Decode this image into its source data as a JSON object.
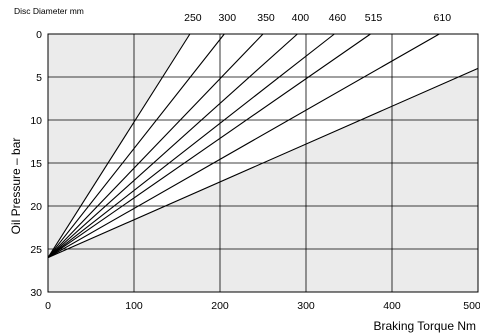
{
  "chart_data": {
    "type": "line",
    "title": "",
    "xlabel": "Braking Torque Nm",
    "ylabel": "Oil Pressure – bar",
    "xlim": [
      0,
      500
    ],
    "ylim": [
      30,
      0
    ],
    "x_ticks": [
      0,
      100,
      200,
      300,
      400,
      500
    ],
    "x_tick_labels": [
      "0",
      "100",
      "200",
      "300",
      "400",
      "500"
    ],
    "y_ticks": [
      0,
      5,
      10,
      15,
      20,
      25,
      30
    ],
    "y_tick_labels": [
      "0",
      "5",
      "10",
      "15",
      "20",
      "25",
      "30"
    ],
    "grid": true,
    "top_axis_title": "Disc Diameter mm",
    "series": [
      {
        "name": "250",
        "x": [
          0,
          165
        ],
        "y": [
          26,
          0
        ]
      },
      {
        "name": "300",
        "x": [
          0,
          205
        ],
        "y": [
          26,
          0
        ]
      },
      {
        "name": "350",
        "x": [
          0,
          250
        ],
        "y": [
          26,
          0
        ]
      },
      {
        "name": "400",
        "x": [
          0,
          290
        ],
        "y": [
          26,
          0
        ]
      },
      {
        "name": "460",
        "x": [
          0,
          333
        ],
        "y": [
          26,
          0
        ]
      },
      {
        "name": "515",
        "x": [
          0,
          375
        ],
        "y": [
          26,
          0
        ]
      },
      {
        "name": "610",
        "x": [
          0,
          455
        ],
        "y": [
          26,
          0
        ]
      },
      {
        "name": "",
        "x": [
          0,
          500
        ],
        "y": [
          26,
          4
        ]
      }
    ]
  }
}
